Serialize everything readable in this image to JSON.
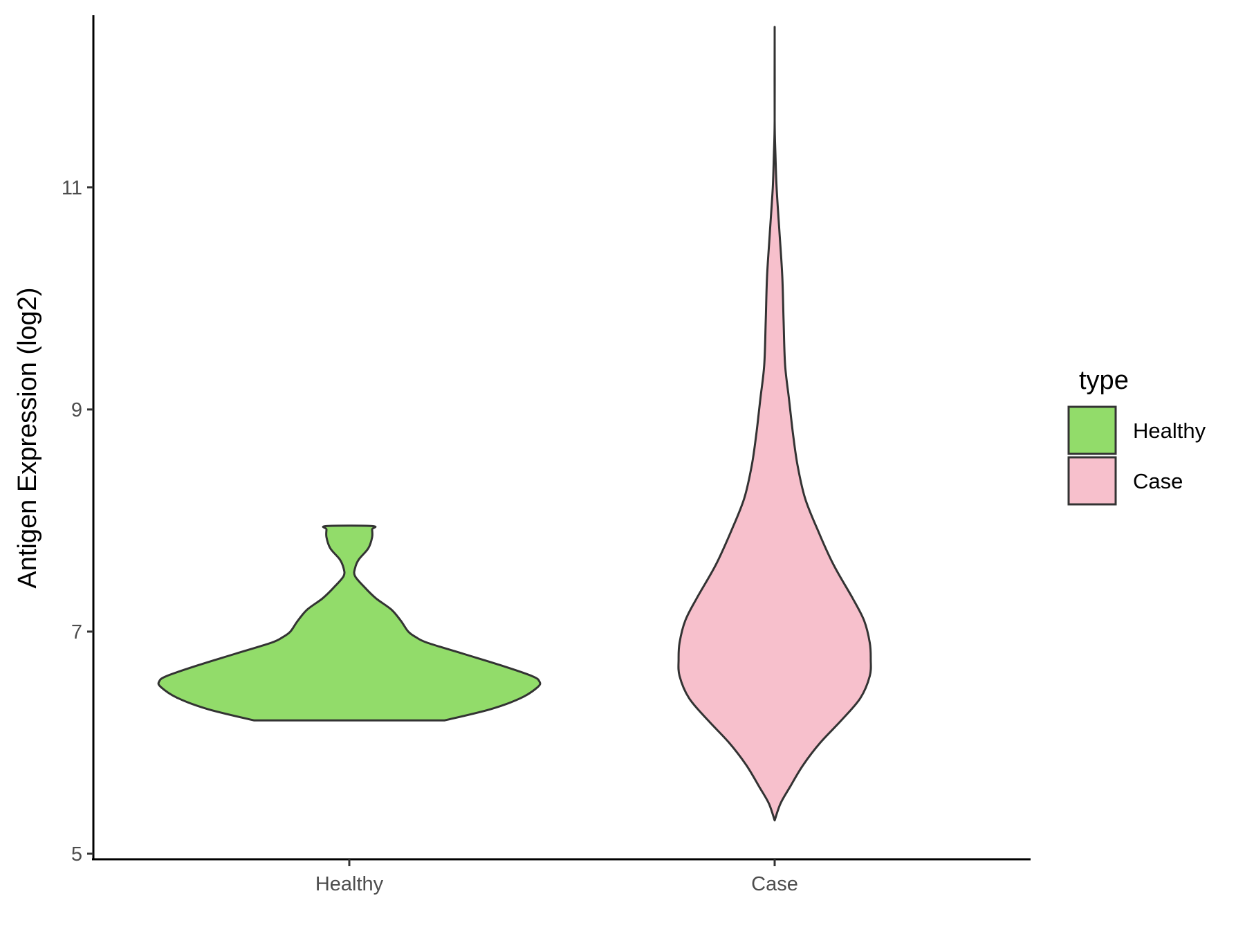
{
  "chart_data": {
    "type": "violin",
    "title": "",
    "xlabel": "",
    "ylabel": "Antigen Expression (log2)",
    "categories": [
      "Healthy",
      "Case"
    ],
    "ylim": [
      4.95,
      12.55
    ],
    "yticks": [
      5,
      7,
      9,
      11
    ],
    "grid": false,
    "legend": {
      "title": "type",
      "placement": "right",
      "entries": [
        {
          "label": "Healthy",
          "color": "#92dc6a"
        },
        {
          "label": "Case",
          "color": "#f7c0cc"
        }
      ]
    },
    "series": [
      {
        "name": "Healthy",
        "color": "#92dc6a",
        "min": 6.2,
        "max": 7.95,
        "density": [
          [
            6.2,
            0.5
          ],
          [
            6.3,
            0.74
          ],
          [
            6.4,
            0.9
          ],
          [
            6.5,
            0.99
          ],
          [
            6.55,
            1.0
          ],
          [
            6.6,
            0.96
          ],
          [
            6.7,
            0.79
          ],
          [
            6.8,
            0.6
          ],
          [
            6.9,
            0.41
          ],
          [
            6.95,
            0.35
          ],
          [
            7.0,
            0.31
          ],
          [
            7.1,
            0.27
          ],
          [
            7.2,
            0.22
          ],
          [
            7.3,
            0.14
          ],
          [
            7.4,
            0.08
          ],
          [
            7.5,
            0.03
          ],
          [
            7.57,
            0.03
          ],
          [
            7.65,
            0.05
          ],
          [
            7.75,
            0.1
          ],
          [
            7.85,
            0.12
          ],
          [
            7.92,
            0.12
          ],
          [
            7.95,
            0.12
          ]
        ]
      },
      {
        "name": "Case",
        "color": "#f7c0cc",
        "min": 5.3,
        "max": 12.35,
        "density": [
          [
            5.3,
            0.0
          ],
          [
            5.45,
            0.03
          ],
          [
            5.6,
            0.08
          ],
          [
            5.8,
            0.15
          ],
          [
            6.0,
            0.24
          ],
          [
            6.2,
            0.35
          ],
          [
            6.4,
            0.45
          ],
          [
            6.6,
            0.5
          ],
          [
            6.75,
            0.505
          ],
          [
            6.9,
            0.5
          ],
          [
            7.1,
            0.47
          ],
          [
            7.3,
            0.41
          ],
          [
            7.6,
            0.31
          ],
          [
            7.9,
            0.23
          ],
          [
            8.2,
            0.16
          ],
          [
            8.5,
            0.12
          ],
          [
            8.8,
            0.095
          ],
          [
            9.1,
            0.075
          ],
          [
            9.4,
            0.055
          ],
          [
            9.8,
            0.047
          ],
          [
            10.2,
            0.04
          ],
          [
            10.6,
            0.025
          ],
          [
            11.0,
            0.01
          ],
          [
            11.3,
            0.004
          ],
          [
            11.6,
            0.0
          ],
          [
            12.35,
            0.0
          ]
        ]
      }
    ]
  }
}
